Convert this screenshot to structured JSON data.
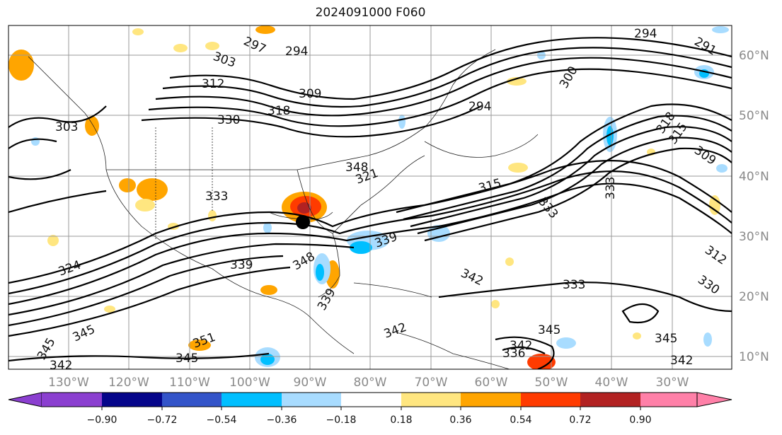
{
  "title": "2024091000 F060",
  "lon_labels": [
    "130°W",
    "120°W",
    "110°W",
    "100°W",
    "90°W",
    "80°W",
    "70°W",
    "60°W",
    "50°W",
    "40°W",
    "30°W"
  ],
  "lat_labels": [
    "60°N",
    "50°N",
    "40°N",
    "30°N",
    "20°N",
    "10°N"
  ],
  "colorbar": {
    "ticks": [
      "−0.90",
      "−0.72",
      "−0.54",
      "−0.36",
      "−0.18",
      "0.18",
      "0.36",
      "0.54",
      "0.72",
      "0.90"
    ],
    "colors": [
      "#8b3fd0",
      "#05058a",
      "#3354c9",
      "#00bfff",
      "#a8dcff",
      "#ffffff",
      "#ffe680",
      "#ffa500",
      "#ff3b00",
      "#b22222",
      "#ff80a8"
    ]
  },
  "contour_labels": [
    {
      "text": "294"
    },
    {
      "text": "291"
    },
    {
      "text": "297"
    },
    {
      "text": "294"
    },
    {
      "text": "303"
    },
    {
      "text": "312"
    },
    {
      "text": "309"
    },
    {
      "text": "318"
    },
    {
      "text": "330"
    },
    {
      "text": "303"
    },
    {
      "text": "300"
    },
    {
      "text": "294"
    },
    {
      "text": "318"
    },
    {
      "text": "315"
    },
    {
      "text": "309"
    },
    {
      "text": "348"
    },
    {
      "text": "321"
    },
    {
      "text": "315"
    },
    {
      "text": "333"
    },
    {
      "text": "333"
    },
    {
      "text": "333"
    },
    {
      "text": "339"
    },
    {
      "text": "342"
    },
    {
      "text": "333"
    },
    {
      "text": "324"
    },
    {
      "text": "345"
    },
    {
      "text": "345"
    },
    {
      "text": "351"
    },
    {
      "text": "345"
    },
    {
      "text": "342"
    },
    {
      "text": "348"
    },
    {
      "text": "339"
    },
    {
      "text": "342"
    },
    {
      "text": "345"
    },
    {
      "text": "345"
    },
    {
      "text": "342"
    },
    {
      "text": "342"
    },
    {
      "text": "312"
    },
    {
      "text": "330"
    },
    {
      "text": "336"
    },
    {
      "text": "339"
    }
  ]
}
